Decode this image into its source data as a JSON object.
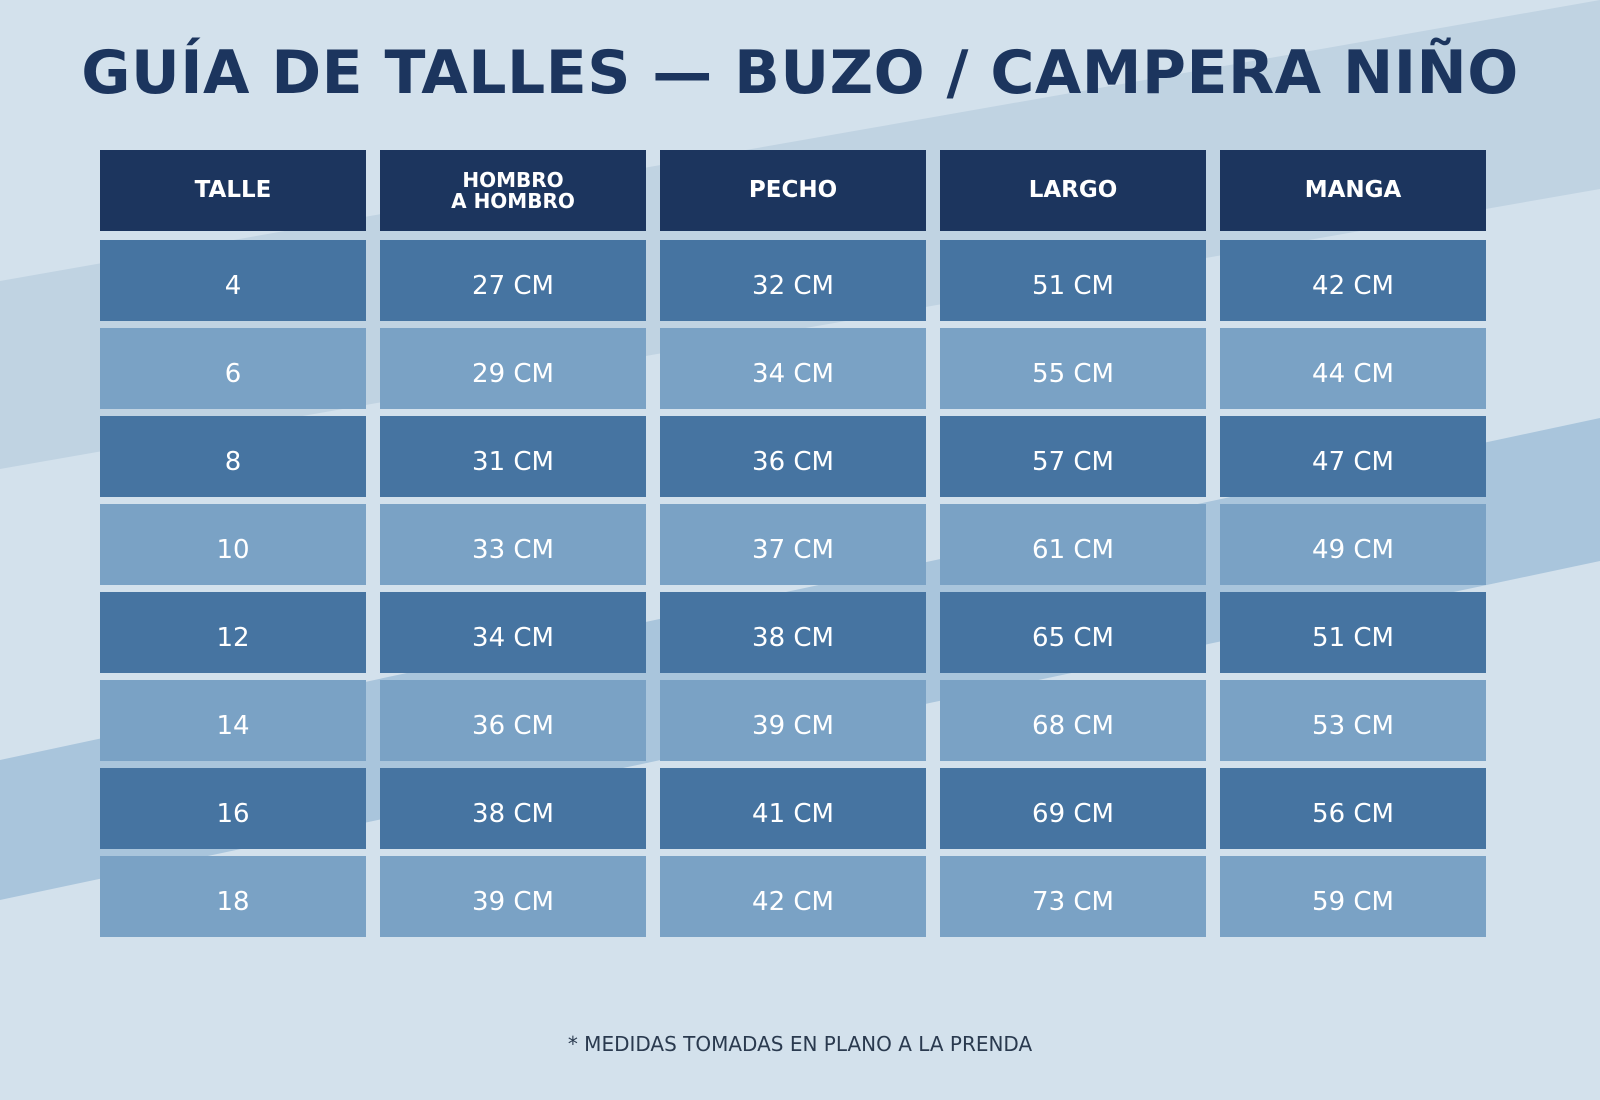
{
  "title": "GUÍA DE TALLES — BUZO / CAMPERA NIÑO",
  "colors": {
    "background": "#d3e1ec",
    "header": "#1c355e",
    "row_dark": "#4674a1",
    "row_light": "#7aa2c5",
    "title": "#1c355e"
  },
  "table": {
    "headers": [
      "TALLE",
      "HOMBRO\nA HOMBRO",
      "PECHO",
      "LARGO",
      "MANGA"
    ],
    "header_lines": {
      "hombro_1": "HOMBRO",
      "hombro_2": "A HOMBRO"
    },
    "rows": [
      [
        "4",
        "27 CM",
        "32 CM",
        "51 CM",
        "42 CM"
      ],
      [
        "6",
        "29 CM",
        "34 CM",
        "55 CM",
        "44 CM"
      ],
      [
        "8",
        "31 CM",
        "36 CM",
        "57 CM",
        "47 CM"
      ],
      [
        "10",
        "33 CM",
        "37 CM",
        "61 CM",
        "49 CM"
      ],
      [
        "12",
        "34 CM",
        "38 CM",
        "65 CM",
        "51 CM"
      ],
      [
        "14",
        "36 CM",
        "39 CM",
        "68 CM",
        "53 CM"
      ],
      [
        "16",
        "38 CM",
        "41 CM",
        "69 CM",
        "56 CM"
      ],
      [
        "18",
        "39 CM",
        "42 CM",
        "73 CM",
        "59 CM"
      ]
    ]
  },
  "footer": "* MEDIDAS TOMADAS EN PLANO A LA PRENDA"
}
